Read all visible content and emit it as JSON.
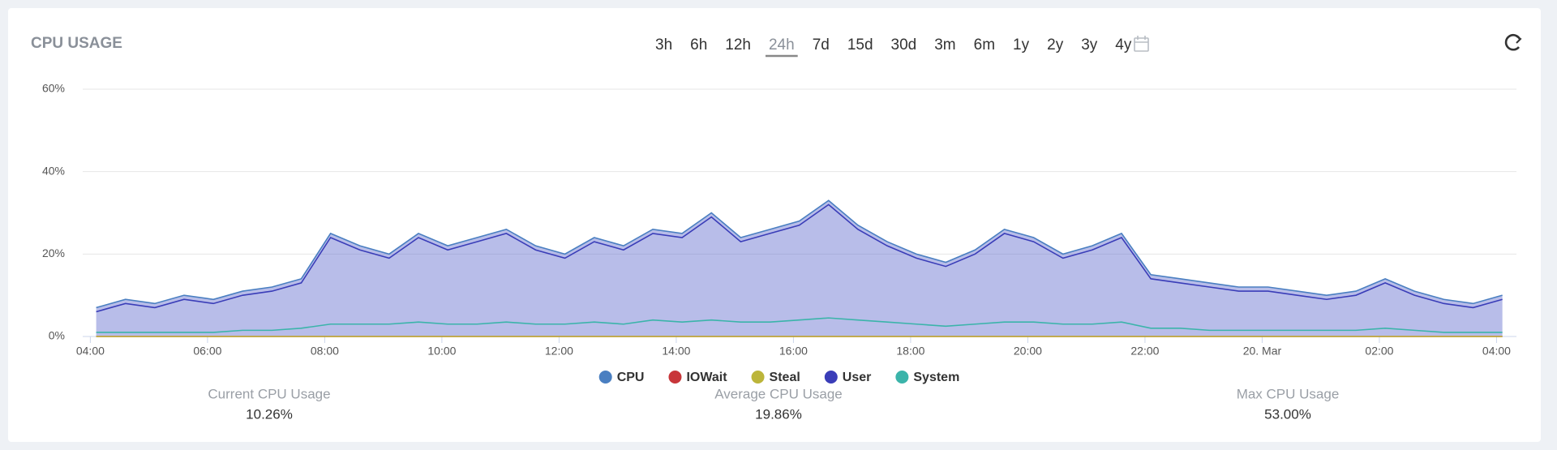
{
  "widget": {
    "title": "CPU USAGE",
    "ranges": [
      "3h",
      "6h",
      "12h",
      "24h",
      "7d",
      "15d",
      "30d",
      "3m",
      "6m",
      "1y",
      "2y",
      "3y",
      "4y"
    ],
    "active_range": "24h",
    "stats": [
      {
        "label": "Current CPU Usage",
        "value": "10.26%"
      },
      {
        "label": "Average CPU Usage",
        "value": "19.86%"
      },
      {
        "label": "Max CPU Usage",
        "value": "53.00%"
      }
    ]
  },
  "chart_data": {
    "type": "line",
    "area": true,
    "x": [
      4.1,
      4.6,
      5.1,
      5.6,
      6.1,
      6.6,
      7.1,
      7.6,
      8.1,
      8.6,
      9.1,
      9.6,
      10.1,
      10.6,
      11.1,
      11.6,
      12.1,
      12.6,
      13.1,
      13.6,
      14.1,
      14.6,
      15.1,
      15.6,
      16.1,
      16.6,
      17.1,
      17.6,
      18.1,
      18.6,
      19.1,
      19.6,
      20.1,
      20.6,
      21.1,
      21.6,
      22.1,
      22.6,
      23.1,
      23.6,
      24.1,
      24.6,
      25.1,
      25.6,
      26.1,
      26.6,
      27.1,
      27.6,
      28.1
    ],
    "xlim": [
      3.87,
      28.34
    ],
    "xticks": [
      {
        "value": 4,
        "label": "04:00"
      },
      {
        "value": 6,
        "label": "06:00"
      },
      {
        "value": 8,
        "label": "08:00"
      },
      {
        "value": 10,
        "label": "10:00"
      },
      {
        "value": 12,
        "label": "12:00"
      },
      {
        "value": 14,
        "label": "14:00"
      },
      {
        "value": 16,
        "label": "16:00"
      },
      {
        "value": 18,
        "label": "18:00"
      },
      {
        "value": 20,
        "label": "20:00"
      },
      {
        "value": 22,
        "label": "22:00"
      },
      {
        "value": 24,
        "label": "20. Mar"
      },
      {
        "value": 26,
        "label": "02:00"
      },
      {
        "value": 28,
        "label": "04:00"
      }
    ],
    "ylim": [
      0,
      60
    ],
    "yticks": [
      {
        "value": 0,
        "label": "0%"
      },
      {
        "value": 20,
        "label": "20%"
      },
      {
        "value": 40,
        "label": "40%"
      },
      {
        "value": 60,
        "label": "60%"
      }
    ],
    "grid": true,
    "series": [
      {
        "name": "CPU",
        "color": "#4a7fc1",
        "values": [
          7,
          9,
          8,
          10,
          9,
          11,
          12,
          14,
          25,
          22,
          20,
          25,
          22,
          24,
          26,
          22,
          20,
          24,
          22,
          26,
          25,
          30,
          24,
          26,
          28,
          33,
          27,
          23,
          20,
          18,
          21,
          26,
          24,
          20,
          22,
          25,
          15,
          14,
          13,
          12,
          12,
          11,
          10,
          11,
          14,
          11,
          9,
          8,
          10
        ]
      },
      {
        "name": "IOWait",
        "color": "#c8363a",
        "values": [
          0,
          0,
          0,
          0,
          0,
          0,
          0,
          0,
          0,
          0,
          0,
          0,
          0,
          0,
          0,
          0,
          0,
          0,
          0,
          0,
          0,
          0,
          0,
          0,
          0,
          0,
          0,
          0,
          0,
          0,
          0,
          0,
          0,
          0,
          0,
          0,
          0,
          0,
          0,
          0,
          0,
          0,
          0,
          0,
          0,
          0,
          0,
          0,
          0
        ]
      },
      {
        "name": "Steal",
        "color": "#bcb53a",
        "values": [
          0,
          0,
          0,
          0,
          0,
          0,
          0,
          0,
          0,
          0,
          0,
          0,
          0,
          0,
          0,
          0,
          0,
          0,
          0,
          0,
          0,
          0,
          0,
          0,
          0,
          0,
          0,
          0,
          0,
          0,
          0,
          0,
          0,
          0,
          0,
          0,
          0,
          0,
          0,
          0,
          0,
          0,
          0,
          0,
          0,
          0,
          0,
          0,
          0
        ]
      },
      {
        "name": "User",
        "color": "#3a3db8",
        "values": [
          6,
          8,
          7,
          9,
          8,
          10,
          11,
          13,
          24,
          21,
          19,
          24,
          21,
          23,
          25,
          21,
          19,
          23,
          21,
          25,
          24,
          29,
          23,
          25,
          27,
          32,
          26,
          22,
          19,
          17,
          20,
          25,
          23,
          19,
          21,
          24,
          14,
          13,
          12,
          11,
          11,
          10,
          9,
          10,
          13,
          10,
          8,
          7,
          9
        ]
      },
      {
        "name": "System",
        "color": "#3bb4aa",
        "values": [
          1,
          1,
          1,
          1,
          1,
          1.5,
          1.5,
          2,
          3,
          3,
          3,
          3.5,
          3,
          3,
          3.5,
          3,
          3,
          3.5,
          3,
          4,
          3.5,
          4,
          3.5,
          3.5,
          4,
          4.5,
          4,
          3.5,
          3,
          2.5,
          3,
          3.5,
          3.5,
          3,
          3,
          3.5,
          2,
          2,
          1.5,
          1.5,
          1.5,
          1.5,
          1.5,
          1.5,
          2,
          1.5,
          1,
          1,
          1
        ]
      }
    ]
  }
}
